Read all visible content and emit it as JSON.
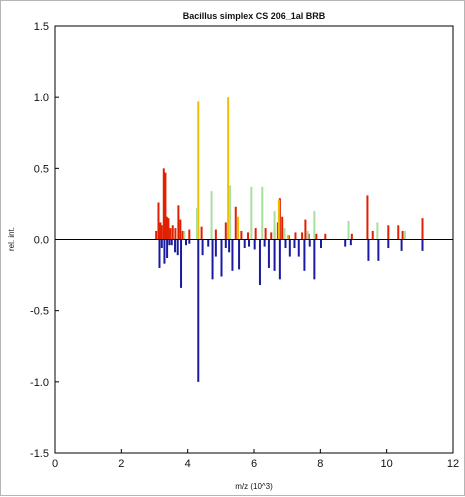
{
  "chart_data": {
    "type": "bar",
    "title": "Bacillus simplex CS 206_1al BRB",
    "xlabel": "m/z (10^3)",
    "ylabel": "rel. int.",
    "xlim": [
      0,
      12
    ],
    "ylim": [
      -1.5,
      1.5
    ],
    "xticks": [
      "0",
      "2",
      "4",
      "6",
      "8",
      "10",
      "12"
    ],
    "yticks": [
      "1.5",
      "1.0",
      "0.5",
      "0.0",
      "-0.5",
      "-1.0",
      "-1.5"
    ],
    "grid": false,
    "legend": "none",
    "colors": {
      "red": "#e02000",
      "yellow": "#f0c000",
      "green": "#a8e0a0",
      "blue": "#1a1aa0",
      "axis": "#000000"
    },
    "series": [
      {
        "color": "red",
        "x": [
          3.05,
          3.12,
          3.18,
          3.22,
          3.28,
          3.33,
          3.37,
          3.42,
          3.48,
          3.55,
          3.63,
          3.72,
          3.78,
          3.85,
          4.05,
          4.42,
          4.85,
          5.15,
          5.45,
          5.62,
          5.82,
          6.05,
          6.35,
          6.52,
          6.62,
          6.72,
          6.78,
          6.85,
          7.05,
          7.25,
          7.45,
          7.55,
          7.65,
          7.88,
          8.15,
          8.95,
          9.42,
          9.58,
          10.05,
          10.35,
          10.48,
          11.08
        ],
        "y": [
          0.06,
          0.26,
          0.12,
          0.1,
          0.5,
          0.47,
          0.16,
          0.15,
          0.08,
          0.1,
          0.08,
          0.24,
          0.14,
          0.06,
          0.07,
          0.09,
          0.07,
          0.12,
          0.23,
          0.06,
          0.05,
          0.08,
          0.08,
          0.05,
          0.08,
          0.12,
          0.29,
          0.16,
          0.03,
          0.05,
          0.05,
          0.14,
          0.04,
          0.04,
          0.04,
          0.04,
          0.31,
          0.06,
          0.1,
          0.1,
          0.06,
          0.15
        ]
      },
      {
        "color": "yellow",
        "x": [
          4.32,
          5.22,
          5.52,
          6.75,
          7.02
        ],
        "y": [
          0.97,
          1.0,
          0.16,
          0.28,
          0.03
        ]
      },
      {
        "color": "green",
        "x": [
          3.9,
          4.28,
          4.72,
          5.28,
          5.92,
          6.25,
          6.62,
          6.92,
          7.62,
          7.82,
          8.85,
          9.72,
          10.55
        ],
        "y": [
          0.06,
          0.22,
          0.34,
          0.38,
          0.37,
          0.37,
          0.2,
          0.08,
          0.06,
          0.2,
          0.13,
          0.12,
          0.06
        ]
      },
      {
        "color": "blue",
        "x": [
          3.15,
          3.22,
          3.3,
          3.38,
          3.45,
          3.52,
          3.62,
          3.7,
          3.8,
          3.95,
          4.05,
          4.32,
          4.45,
          4.62,
          4.75,
          4.85,
          5.02,
          5.15,
          5.25,
          5.35,
          5.55,
          5.72,
          5.85,
          6.02,
          6.18,
          6.32,
          6.45,
          6.62,
          6.78,
          6.95,
          7.08,
          7.22,
          7.35,
          7.52,
          7.68,
          7.82,
          8.02,
          8.75,
          8.92,
          9.45,
          9.75,
          10.05,
          10.45,
          11.08
        ],
        "y": [
          -0.2,
          -0.06,
          -0.17,
          -0.13,
          -0.04,
          -0.04,
          -0.09,
          -0.11,
          -0.34,
          -0.04,
          -0.03,
          -1.0,
          -0.11,
          -0.05,
          -0.28,
          -0.12,
          -0.26,
          -0.06,
          -0.09,
          -0.22,
          -0.21,
          -0.06,
          -0.05,
          -0.07,
          -0.32,
          -0.05,
          -0.2,
          -0.22,
          -0.28,
          -0.06,
          -0.12,
          -0.06,
          -0.12,
          -0.22,
          -0.05,
          -0.28,
          -0.06,
          -0.05,
          -0.04,
          -0.15,
          -0.15,
          -0.06,
          -0.08,
          -0.08
        ]
      }
    ]
  }
}
